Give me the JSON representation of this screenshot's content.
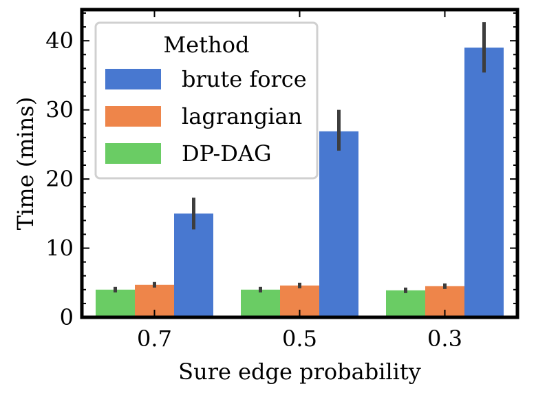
{
  "chart_data": {
    "type": "bar",
    "title": "",
    "xlabel": "Sure edge probability",
    "ylabel": "Time (mins)",
    "categories": [
      "0.7",
      "0.5",
      "0.3"
    ],
    "ylim": [
      0,
      44.5
    ],
    "yticks": [
      0,
      10,
      20,
      30,
      40
    ],
    "grid": false,
    "legend": {
      "title": "Method",
      "position": "top-left"
    },
    "series": [
      {
        "name": "DP-DAG",
        "color": "#6acc64",
        "values": [
          4.0,
          4.0,
          3.9
        ],
        "err_low": [
          3.6,
          3.6,
          3.5
        ],
        "err_high": [
          4.4,
          4.4,
          4.3
        ]
      },
      {
        "name": "lagrangian",
        "color": "#ee854a",
        "values": [
          4.7,
          4.6,
          4.5
        ],
        "err_low": [
          4.3,
          4.2,
          4.1
        ],
        "err_high": [
          5.1,
          5.0,
          4.9
        ]
      },
      {
        "name": "brute force",
        "color": "#4878d0",
        "values": [
          15.0,
          26.9,
          39.0
        ],
        "err_low": [
          12.7,
          24.1,
          35.4
        ],
        "err_high": [
          17.3,
          30.0,
          42.7
        ]
      }
    ],
    "legend_order": [
      "brute force",
      "lagrangian",
      "DP-DAG"
    ]
  }
}
